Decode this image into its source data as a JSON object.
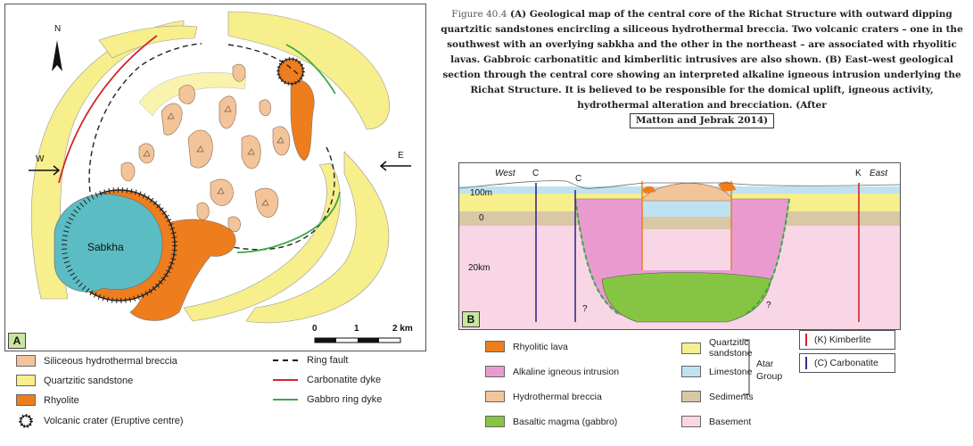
{
  "map": {
    "panel_label": "A",
    "north": "N",
    "west": "W",
    "east": "E",
    "sabkha": "Sabkha",
    "scale": {
      "t0": "0",
      "t1": "1",
      "t2": "2 km"
    }
  },
  "legend_map": {
    "breccia": "Siliceous hydrothermal breccia",
    "sandstone": "Quartzitic sandstone",
    "rhyolite": "Rhyolite",
    "crater": "Volcanic crater (Eruptive centre)",
    "ring_fault": "Ring fault",
    "carbonatite_dyke": "Carbonatite dyke",
    "gabbro_dyke": "Gabbro ring dyke"
  },
  "caption": {
    "figure_no": "Figure 40.4",
    "text": "(A) Geological map of the central core of the Richat Structure with outward dipping quartzitic sandstones encircling a siliceous hydrothermal breccia. Two volcanic craters – one in the southwest with an overlying sabkha and the other in the northeast – are associated with rhyolitic lavas. Gabbroic carbonatitic and kimberlitic intrusives are also shown. (B) East–west geological section through the central core showing an interpreted alkaline igneous intrusion underlying the Richat Structure. It is believed to be responsible for the domical uplift, igneous activity, hydrothermal alteration and brecciation. (After",
    "citation": "Matton and Jebrak 2014)"
  },
  "section": {
    "panel_label": "B",
    "west": "West",
    "east": "East",
    "c1": "C",
    "c2": "C",
    "k": "K",
    "d100": "100m",
    "d0": "0",
    "d20": "20km",
    "q1": "?",
    "q2": "?"
  },
  "legend_section": {
    "rhyolitic": "Rhyolitic lava",
    "alkaline": "Alkaline igneous intrusion",
    "hydro": "Hydrothermal breccia",
    "basaltic": "Basaltic magma (gabbro)",
    "quartzitic": "Quartzitic sandstone",
    "limestone": "Limestone",
    "sediments": "Sediments",
    "basement": "Basement",
    "atar1": "Atar",
    "atar2": "Group",
    "kimberlite": "(K) Kimberlite",
    "carbonatite": "(C) Carbonatite"
  },
  "colors": {
    "sandstone": "#f7ee8c",
    "breccia": "#f3c49a",
    "rhyolite": "#ee7d1e",
    "sabkha": "#5bbcc4",
    "alkaline": "#e99bd0",
    "basement": "#f8d6e6",
    "limestone": "#bfe2f0",
    "sediments": "#d8c8a6",
    "gabbro": "#86c544",
    "carbonatite": "#d4242b",
    "gabbro_dyke": "#3ca746",
    "kimberlite": "#d4242b",
    "carbonatite_line": "#3a2a8c"
  }
}
